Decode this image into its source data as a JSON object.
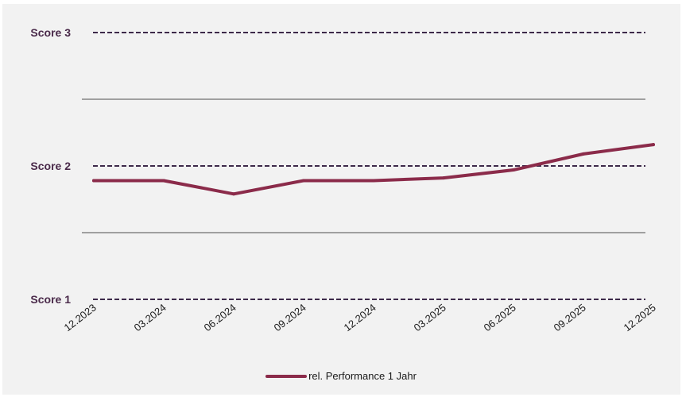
{
  "chart_data": {
    "type": "line",
    "x": [
      "12.2023",
      "03.2024",
      "06.2024",
      "09.2024",
      "12.2024",
      "03.2025",
      "06.2025",
      "09.2025",
      "12.2025"
    ],
    "series": [
      {
        "name": "rel. Performance 1 Jahr",
        "values": [
          1.89,
          1.89,
          1.79,
          1.89,
          1.89,
          1.91,
          1.97,
          2.09,
          2.16
        ]
      }
    ],
    "ylim": [
      1,
      3
    ],
    "y_ticks": [
      {
        "value": 3,
        "label": "Score 3",
        "style": "dashed"
      },
      {
        "value": 2.5,
        "label": "",
        "style": "solid"
      },
      {
        "value": 2,
        "label": "Score 2",
        "style": "dashed"
      },
      {
        "value": 1.5,
        "label": "",
        "style": "solid"
      },
      {
        "value": 1,
        "label": "Score 1",
        "style": "dashed"
      }
    ],
    "grid": true,
    "legend_position": "bottom",
    "line_color": "#8b2b4a",
    "dashed_line_color": "#3d2a4a",
    "grid_color": "#4d4d4d"
  }
}
